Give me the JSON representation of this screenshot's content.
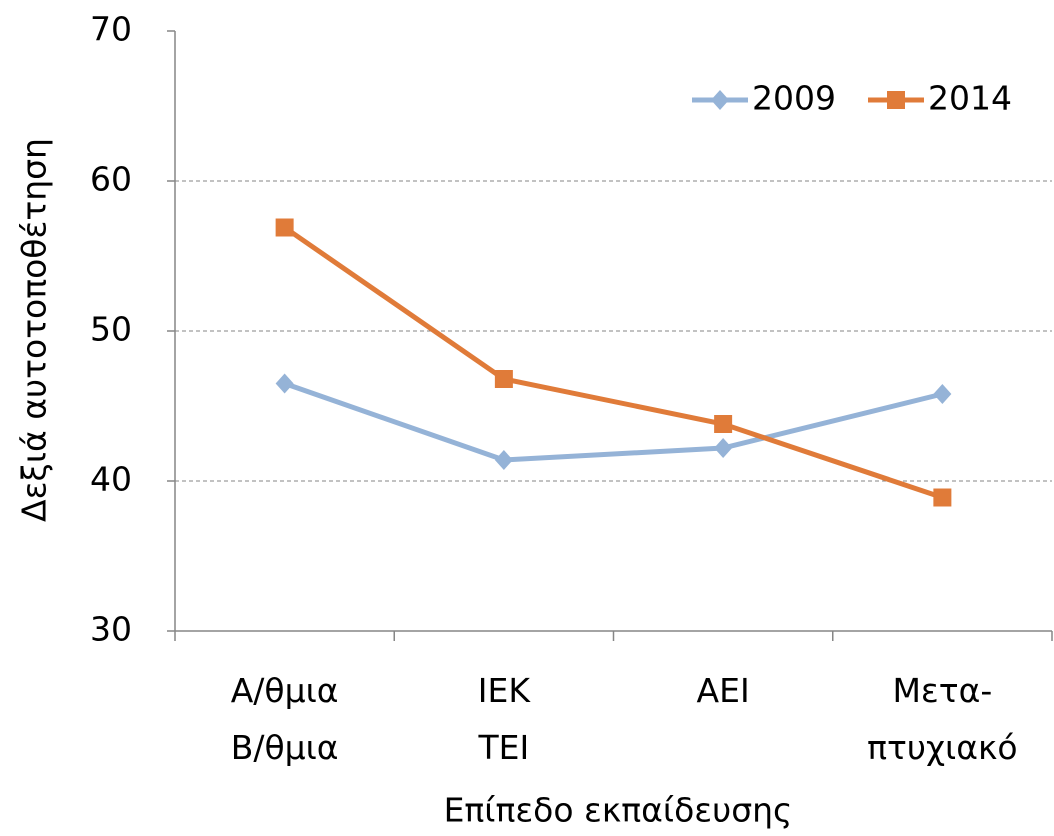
{
  "chart_data": {
    "type": "line",
    "categories": [
      [
        "Α/θμια",
        "Β/θμια"
      ],
      [
        "ΙΕΚ",
        "ΤΕΙ"
      ],
      [
        "ΑΕΙ"
      ],
      [
        "Μετα-",
        "πτυχιακό"
      ]
    ],
    "series": [
      {
        "name": "2009",
        "color": "#95b3d7",
        "marker": "diamond",
        "values": [
          46.5,
          41.4,
          42.2,
          45.8
        ]
      },
      {
        "name": "2014",
        "color": "#e07b39",
        "marker": "square",
        "values": [
          56.9,
          46.8,
          43.8,
          38.9
        ]
      }
    ],
    "x_label": "Επίπεδο εκπαίδευσης",
    "y_label": "Δεξιά αυτοτοποθέτηση",
    "ylim": [
      30,
      70
    ],
    "yticks": [
      30,
      40,
      50,
      60,
      70
    ],
    "grid": true,
    "legend": "top-right"
  }
}
